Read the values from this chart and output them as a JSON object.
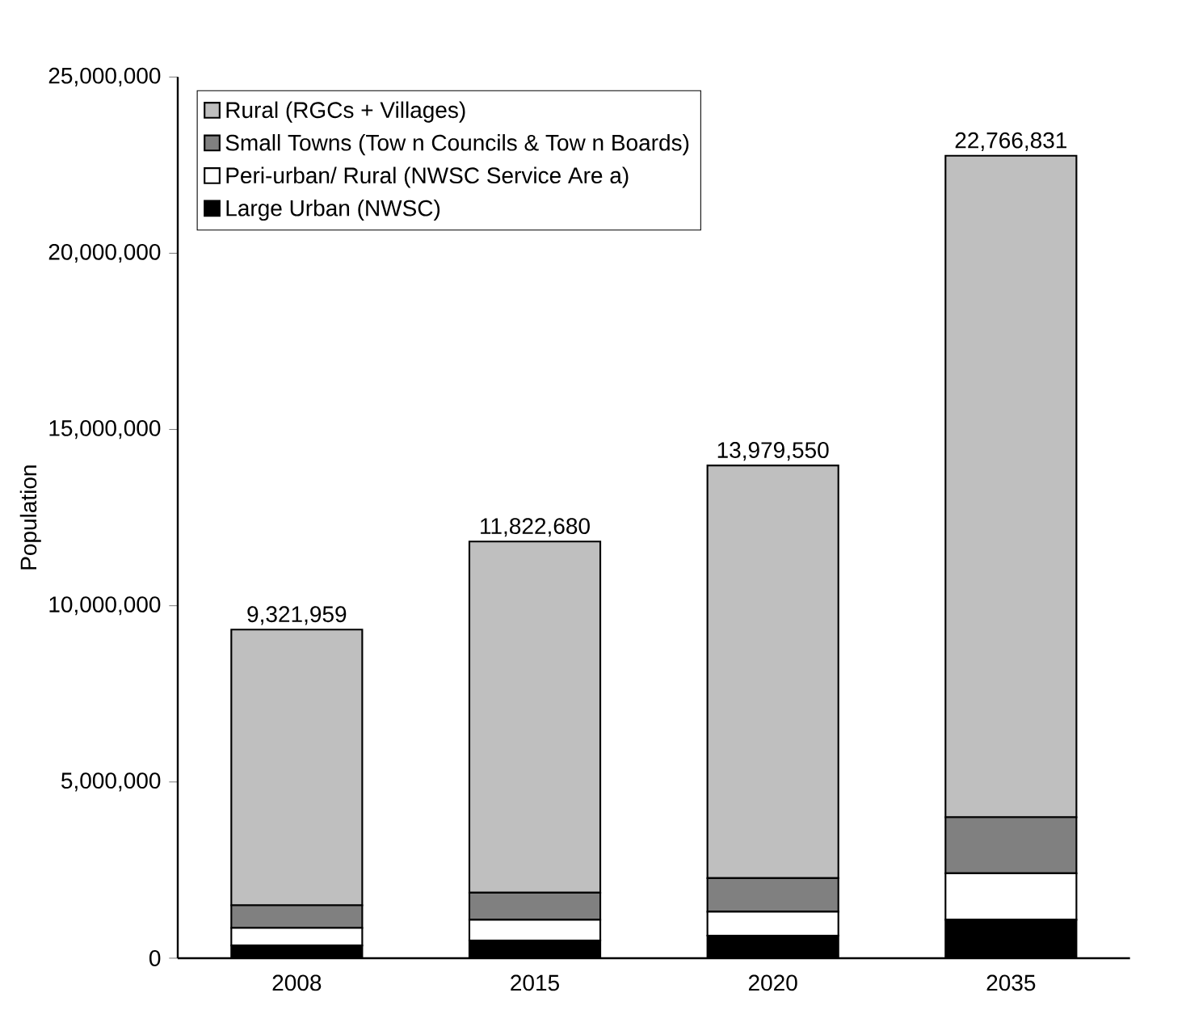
{
  "chart_data": {
    "type": "bar",
    "stacked": true,
    "ylabel": "Population",
    "categories": [
      "2008",
      "2015",
      "2020",
      "2035"
    ],
    "series": [
      {
        "name": "Large Urban (NWSC)",
        "color": "#000000",
        "values": [
          360000,
          500000,
          640000,
          1090000
        ]
      },
      {
        "name": "Peri-urban/ Rural (NWSC Service Are a)",
        "color": "#ffffff",
        "values": [
          500000,
          590000,
          680000,
          1320000
        ]
      },
      {
        "name": "Small Towns (Tow n Councils & Tow n Boards)",
        "color": "#808080",
        "values": [
          640000,
          770000,
          950000,
          1590000
        ]
      },
      {
        "name": "Rural (RGCs + Villages)",
        "color": "#bfbfbf",
        "values": [
          7821959,
          9962680,
          11709550,
          18766831
        ]
      }
    ],
    "totals": [
      "9,321,959",
      "11,822,680",
      "13,979,550",
      "22,766,831"
    ],
    "ylim": [
      0,
      25000000
    ],
    "yticks": [
      {
        "value": 0,
        "label": "0"
      },
      {
        "value": 5000000,
        "label": "5,000,000"
      },
      {
        "value": 10000000,
        "label": "10,000,000"
      },
      {
        "value": 15000000,
        "label": "15,000,000"
      },
      {
        "value": 20000000,
        "label": "20,000,000"
      },
      {
        "value": 25000000,
        "label": "25,000,000"
      }
    ],
    "legend": "top left",
    "grid": false
  }
}
